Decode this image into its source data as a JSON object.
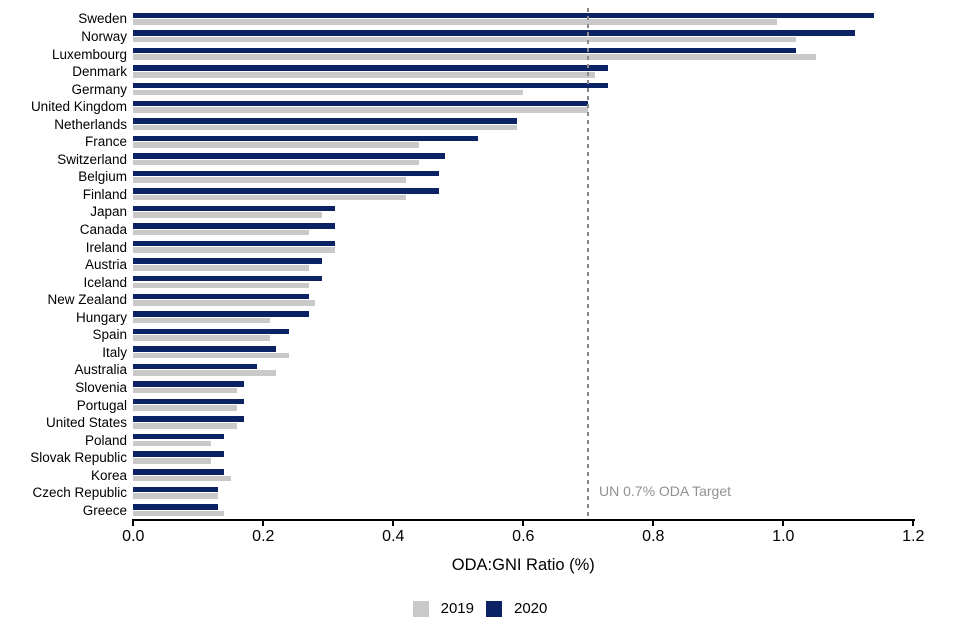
{
  "chart_data": {
    "type": "bar",
    "orientation": "horizontal",
    "title": "",
    "xlabel": "ODA:GNI Ratio (%)",
    "ylabel": "",
    "xlim": [
      0,
      1.2
    ],
    "xticks": [
      0.0,
      0.2,
      0.4,
      0.6,
      0.8,
      1.0,
      1.2
    ],
    "xtick_labels": [
      "0.0",
      "0.2",
      "0.4",
      "0.6",
      "0.8",
      "1.0",
      "1.2"
    ],
    "grid": false,
    "categories": [
      "Sweden",
      "Norway",
      "Luxembourg",
      "Denmark",
      "Germany",
      "United Kingdom",
      "Netherlands",
      "France",
      "Switzerland",
      "Belgium",
      "Finland",
      "Japan",
      "Canada",
      "Ireland",
      "Austria",
      "Iceland",
      "New Zealand",
      "Hungary",
      "Spain",
      "Italy",
      "Australia",
      "Slovenia",
      "Portugal",
      "United States",
      "Poland",
      "Slovak Republic",
      "Korea",
      "Czech Republic",
      "Greece"
    ],
    "series": [
      {
        "name": "2019",
        "color": "#c9c9c9",
        "values": [
          0.99,
          1.02,
          1.05,
          0.71,
          0.6,
          0.7,
          0.59,
          0.44,
          0.44,
          0.42,
          0.42,
          0.29,
          0.27,
          0.31,
          0.27,
          0.27,
          0.28,
          0.21,
          0.21,
          0.24,
          0.22,
          0.16,
          0.16,
          0.16,
          0.12,
          0.12,
          0.15,
          0.13,
          0.14
        ]
      },
      {
        "name": "2020",
        "color": "#0b2265",
        "values": [
          1.14,
          1.11,
          1.02,
          0.73,
          0.73,
          0.7,
          0.59,
          0.53,
          0.48,
          0.47,
          0.47,
          0.31,
          0.31,
          0.31,
          0.29,
          0.29,
          0.27,
          0.27,
          0.24,
          0.22,
          0.19,
          0.17,
          0.17,
          0.17,
          0.14,
          0.14,
          0.14,
          0.13,
          0.13
        ]
      }
    ],
    "target_line": {
      "value": 0.7,
      "label": "UN 0.7% ODA Target",
      "style": "dashed",
      "line_color": "#8a8a8a",
      "label_color": "#8e938f"
    },
    "legend": {
      "position": "bottom",
      "entries": [
        "2019",
        "2020"
      ]
    }
  }
}
